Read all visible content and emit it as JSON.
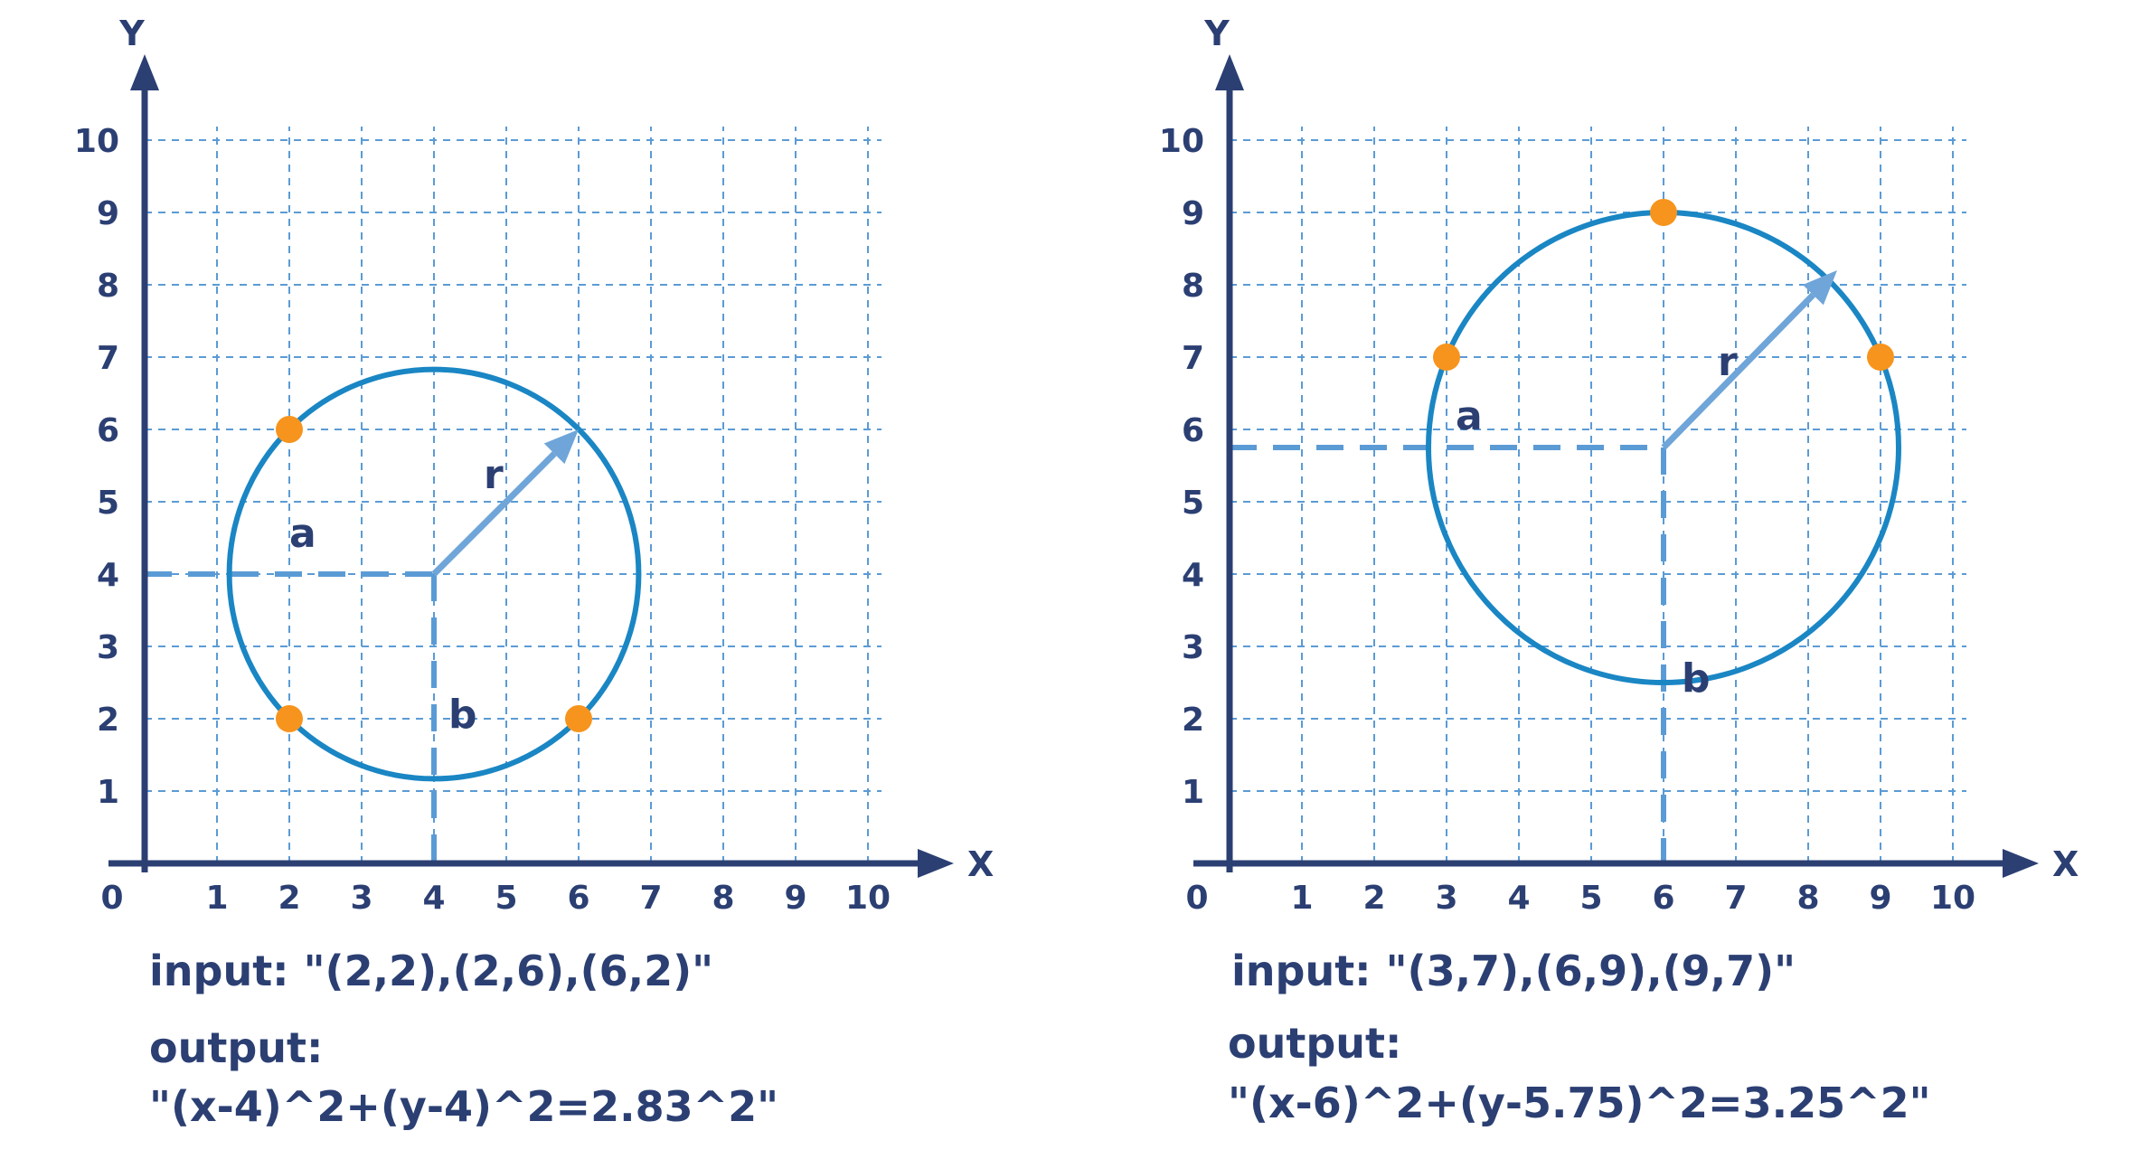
{
  "colors": {
    "axis": "#2b3f73",
    "grid": "#5b9bd5",
    "circle": "#1a86c4",
    "guide": "#5b9bd5",
    "radius": "#6fa5d8",
    "point": "#f7941d",
    "text": "#2b3f73"
  },
  "diagrams": [
    {
      "x_axis_label": "X",
      "y_axis_label": "Y",
      "origin_label": "0",
      "x_ticks": [
        "1",
        "2",
        "3",
        "4",
        "5",
        "6",
        "7",
        "8",
        "9",
        "10"
      ],
      "y_ticks": [
        "1",
        "2",
        "3",
        "4",
        "5",
        "6",
        "7",
        "8",
        "9",
        "10"
      ],
      "x_range": [
        0,
        10
      ],
      "y_range": [
        0,
        10
      ],
      "center": [
        4,
        4
      ],
      "radius": 2.83,
      "radius_tip": [
        6,
        6
      ],
      "points": [
        [
          2,
          2
        ],
        [
          2,
          6
        ],
        [
          6,
          2
        ]
      ],
      "label_a": "a",
      "label_b": "b",
      "label_r": "r",
      "input_text": "input: \"(2,2),(2,6),(6,2)\"",
      "output_label": "output:",
      "output_text": "\"(x-4)^2+(y-4)^2=2.83^2\""
    },
    {
      "x_axis_label": "X",
      "y_axis_label": "Y",
      "origin_label": "0",
      "x_ticks": [
        "1",
        "2",
        "3",
        "4",
        "5",
        "6",
        "7",
        "8",
        "9",
        "10"
      ],
      "y_ticks": [
        "1",
        "2",
        "3",
        "4",
        "5",
        "6",
        "7",
        "8",
        "9",
        "10"
      ],
      "x_range": [
        0,
        10
      ],
      "y_range": [
        0,
        10
      ],
      "center": [
        6,
        5.75
      ],
      "radius": 3.25,
      "radius_tip": [
        8.4,
        8.2
      ],
      "points": [
        [
          3,
          7
        ],
        [
          6,
          9
        ],
        [
          9,
          7
        ]
      ],
      "label_a": "a",
      "label_b": "b",
      "label_r": "r",
      "input_text": "input: \"(3,7),(6,9),(9,7)\"",
      "output_label": "output:",
      "output_text": "\"(x-6)^2+(y-5.75)^2=3.25^2\""
    }
  ]
}
